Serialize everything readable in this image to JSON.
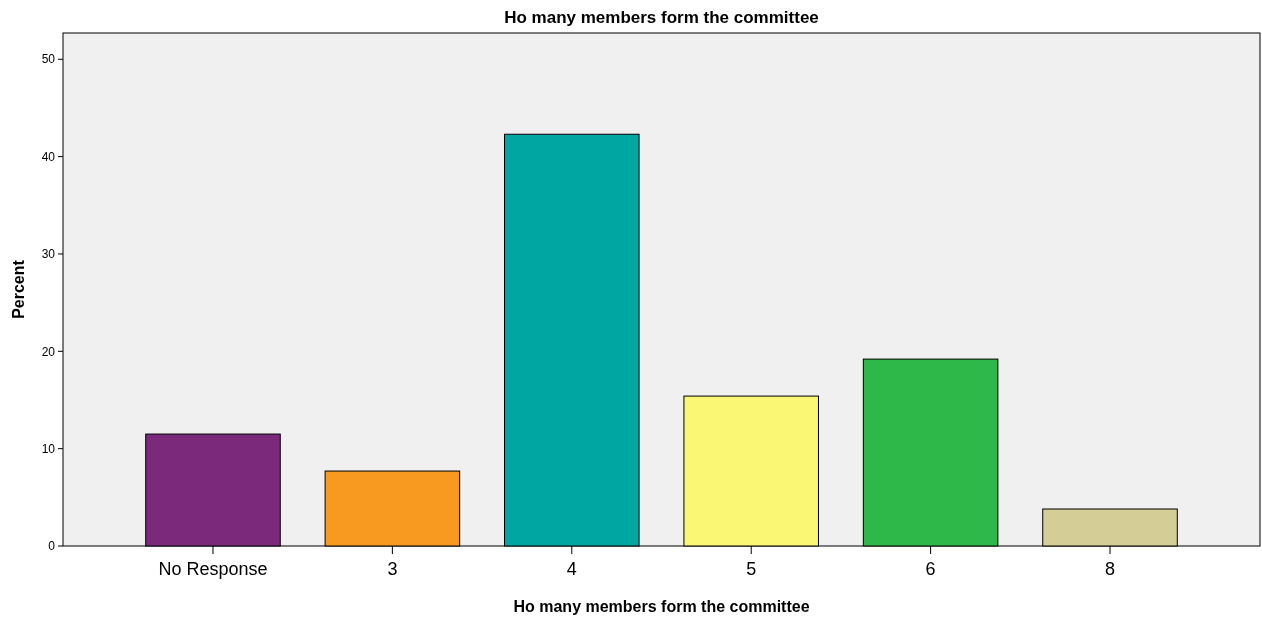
{
  "chart_data": {
    "type": "bar",
    "title": "Ho many members form the committee",
    "xlabel": "Ho many members form the committee",
    "ylabel": "Percent",
    "categories": [
      "No Response",
      "3",
      "4",
      "5",
      "6",
      "8"
    ],
    "values": [
      11.5,
      7.7,
      42.3,
      15.4,
      19.2,
      3.8
    ],
    "colors": [
      "#7b2a7b",
      "#f89a20",
      "#00a6a2",
      "#f9f774",
      "#2fb84a",
      "#d4cd96"
    ],
    "ylim": [
      0,
      52.7
    ],
    "yticks": [
      0,
      10,
      20,
      30,
      40,
      50
    ]
  }
}
